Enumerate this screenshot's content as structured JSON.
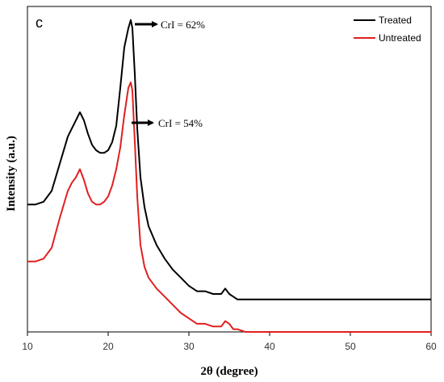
{
  "chart_data": {
    "type": "line",
    "panel_label": "c",
    "xlabel": "2θ (degree)",
    "ylabel": "Intensity (a.u.)",
    "xlim": [
      10,
      60
    ],
    "xticks": [
      10,
      20,
      30,
      40,
      50,
      60
    ],
    "ylim": [
      0,
      1.2
    ],
    "grid": false,
    "legend_position": "top-right",
    "series": [
      {
        "name": "Treated",
        "color": "#000000",
        "x": [
          10,
          11,
          12,
          13,
          14,
          15,
          15.5,
          16,
          16.5,
          17,
          17.5,
          18,
          18.5,
          19,
          19.5,
          20,
          20.5,
          21,
          21.5,
          22,
          22.5,
          22.8,
          23,
          23.3,
          23.6,
          24,
          24.5,
          25,
          26,
          27,
          28,
          29,
          30,
          31,
          32,
          33,
          34,
          34.5,
          35,
          35.5,
          36,
          37,
          40,
          50,
          60
        ],
        "y": [
          0.47,
          0.47,
          0.48,
          0.52,
          0.62,
          0.72,
          0.75,
          0.78,
          0.81,
          0.78,
          0.73,
          0.69,
          0.67,
          0.66,
          0.66,
          0.67,
          0.7,
          0.76,
          0.9,
          1.05,
          1.12,
          1.15,
          1.12,
          0.95,
          0.75,
          0.57,
          0.46,
          0.39,
          0.32,
          0.27,
          0.23,
          0.2,
          0.17,
          0.15,
          0.15,
          0.14,
          0.14,
          0.16,
          0.14,
          0.13,
          0.12,
          0.12,
          0.12,
          0.12,
          0.12
        ]
      },
      {
        "name": "Untreated",
        "color": "#e02020",
        "x": [
          10,
          11,
          12,
          13,
          14,
          15,
          15.5,
          16,
          16.5,
          17,
          17.5,
          18,
          18.5,
          19,
          19.5,
          20,
          20.5,
          21,
          21.5,
          22,
          22.5,
          22.8,
          23,
          23.3,
          23.6,
          24,
          24.5,
          25,
          26,
          27,
          28,
          29,
          30,
          31,
          32,
          33,
          34,
          34.5,
          35,
          35.5,
          36,
          37,
          40,
          50,
          60
        ],
        "y": [
          0.26,
          0.26,
          0.27,
          0.31,
          0.42,
          0.52,
          0.55,
          0.57,
          0.6,
          0.56,
          0.51,
          0.48,
          0.47,
          0.47,
          0.48,
          0.5,
          0.54,
          0.6,
          0.68,
          0.8,
          0.9,
          0.92,
          0.89,
          0.7,
          0.5,
          0.32,
          0.24,
          0.2,
          0.16,
          0.13,
          0.1,
          0.07,
          0.05,
          0.03,
          0.03,
          0.02,
          0.02,
          0.04,
          0.03,
          0.01,
          0.01,
          0.0,
          0.0,
          0.0,
          0.0
        ]
      }
    ],
    "annotations": [
      {
        "text": "CrI = 62%",
        "series": "Treated"
      },
      {
        "text": "CrI = 54%",
        "series": "Untreated"
      }
    ]
  }
}
